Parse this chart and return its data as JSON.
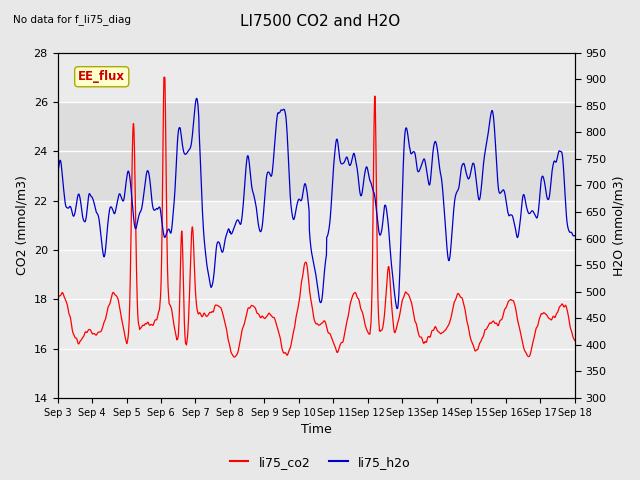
{
  "title": "LI7500 CO2 and H2O",
  "top_left_note": "No data for f_li75_diag",
  "xlabel": "Time",
  "ylabel_left": "CO2 (mmol/m3)",
  "ylabel_right": "H2O (mmol/m3)",
  "ylim_left": [
    14,
    28
  ],
  "ylim_right": [
    300,
    950
  ],
  "yticks_left": [
    14,
    16,
    18,
    20,
    22,
    24,
    26,
    28
  ],
  "yticks_right": [
    300,
    350,
    400,
    450,
    500,
    550,
    600,
    650,
    700,
    750,
    800,
    850,
    900,
    950
  ],
  "xtick_labels": [
    "Sep 3",
    "Sep 4",
    "Sep 5",
    "Sep 6",
    "Sep 7",
    "Sep 8",
    "Sep 9",
    "Sep 10",
    "Sep 11",
    "Sep 12",
    "Sep 13",
    "Sep 14",
    "Sep 15",
    "Sep 16",
    "Sep 17",
    "Sep 18"
  ],
  "co2_color": "#FF0000",
  "h2o_color": "#0000CC",
  "bg_color": "#E8E8E8",
  "plot_bg_color": "#EBEBEB",
  "legend_labels": [
    "li75_co2",
    "li75_h2o"
  ],
  "ee_flux_label": "EE_flux",
  "ee_flux_bg": "#FFFFCC",
  "ee_flux_text_color": "#CC0000",
  "shaded_low": 22,
  "shaded_high": 26
}
